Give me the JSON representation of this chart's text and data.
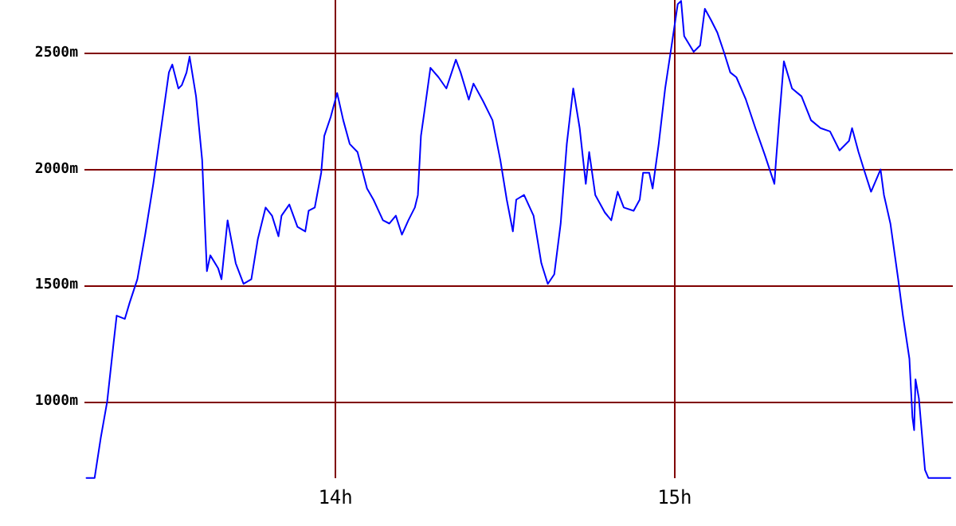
{
  "chart_data": {
    "type": "line",
    "xlim": [
      13.26,
      15.82
    ],
    "ylim": [
      670,
      2730
    ],
    "xticks": [
      {
        "value": 14,
        "label": "14h"
      },
      {
        "value": 15,
        "label": "15h"
      }
    ],
    "yticks": [
      {
        "value": 1000,
        "label": "1000m"
      },
      {
        "value": 1500,
        "label": "1500m"
      },
      {
        "value": 2000,
        "label": "2000m"
      },
      {
        "value": 2500,
        "label": "2500m"
      }
    ],
    "grid": true,
    "marker": "none",
    "line_style": "solid",
    "series": [
      {
        "color": "#0000ff",
        "x": [
          13.266,
          13.29,
          13.308,
          13.327,
          13.346,
          13.355,
          13.379,
          13.393,
          13.416,
          13.439,
          13.463,
          13.486,
          13.509,
          13.519,
          13.537,
          13.547,
          13.561,
          13.57,
          13.589,
          13.607,
          13.617,
          13.621,
          13.631,
          13.654,
          13.664,
          13.682,
          13.706,
          13.729,
          13.752,
          13.771,
          13.794,
          13.813,
          13.832,
          13.841,
          13.864,
          13.888,
          13.911,
          13.921,
          13.939,
          13.958,
          13.967,
          13.986,
          14.005,
          14.023,
          14.042,
          14.065,
          14.093,
          14.112,
          14.14,
          14.159,
          14.178,
          14.196,
          14.215,
          14.234,
          14.243,
          14.252,
          14.262,
          14.28,
          14.304,
          14.327,
          14.355,
          14.369,
          14.393,
          14.407,
          14.435,
          14.463,
          14.486,
          14.505,
          14.523,
          14.533,
          14.556,
          14.584,
          14.607,
          14.626,
          14.645,
          14.664,
          14.682,
          14.701,
          14.72,
          14.738,
          14.748,
          14.766,
          14.794,
          14.813,
          14.832,
          14.85,
          14.879,
          14.897,
          14.907,
          14.925,
          14.935,
          14.953,
          14.972,
          14.991,
          15.009,
          15.019,
          15.028,
          15.056,
          15.075,
          15.089,
          15.107,
          15.126,
          15.145,
          15.164,
          15.182,
          15.21,
          15.238,
          15.266,
          15.294,
          15.299,
          15.308,
          15.322,
          15.346,
          15.374,
          15.402,
          15.43,
          15.458,
          15.486,
          15.514,
          15.523,
          15.542,
          15.561,
          15.579,
          15.607,
          15.617,
          15.636,
          15.659,
          15.673,
          15.692,
          15.701,
          15.706,
          15.71,
          15.72,
          15.738,
          15.748,
          15.813
        ],
        "values": [
          671,
          671,
          843,
          1000,
          1253,
          1370,
          1356,
          1425,
          1527,
          1719,
          1938,
          2178,
          2418,
          2452,
          2349,
          2363,
          2418,
          2486,
          2315,
          2041,
          1699,
          1562,
          1630,
          1575,
          1527,
          1781,
          1596,
          1507,
          1527,
          1699,
          1836,
          1801,
          1712,
          1801,
          1849,
          1753,
          1733,
          1822,
          1836,
          1986,
          2144,
          2226,
          2329,
          2212,
          2110,
          2075,
          1918,
          1870,
          1781,
          1767,
          1801,
          1719,
          1781,
          1836,
          1890,
          2144,
          2247,
          2438,
          2397,
          2349,
          2473,
          2418,
          2301,
          2370,
          2295,
          2212,
          2041,
          1870,
          1733,
          1870,
          1890,
          1801,
          1596,
          1507,
          1548,
          1767,
          2110,
          2349,
          2178,
          1938,
          2075,
          1890,
          1815,
          1781,
          1904,
          1836,
          1822,
          1870,
          1986,
          1986,
          1918,
          2110,
          2349,
          2534,
          2712,
          2726,
          2575,
          2507,
          2534,
          2692,
          2644,
          2589,
          2507,
          2418,
          2397,
          2301,
          2178,
          2062,
          1938,
          2041,
          2212,
          2466,
          2349,
          2315,
          2212,
          2178,
          2164,
          2082,
          2123,
          2178,
          2075,
          1986,
          1904,
          2000,
          1890,
          1767,
          1527,
          1370,
          1185,
          932,
          877,
          1096,
          1014,
          706,
          671,
          671
        ]
      }
    ]
  }
}
